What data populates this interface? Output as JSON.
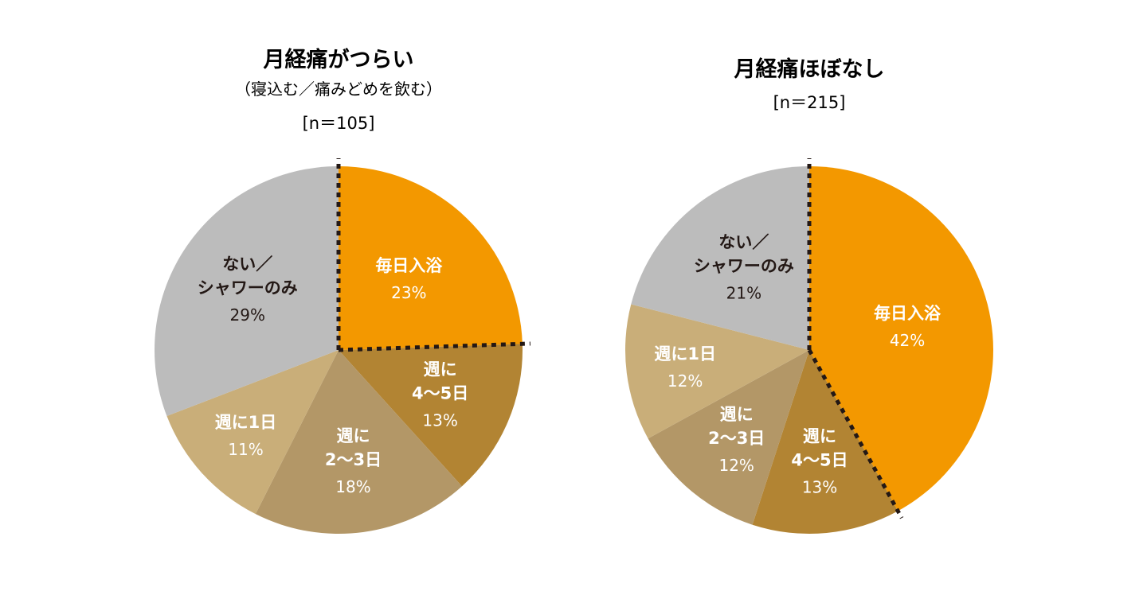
{
  "colors": {
    "bath_daily": "#f39800",
    "week_4_5": "#b28433",
    "week_2_3": "#b39767",
    "week_1": "#c9ae79",
    "none_shower": "#bcbcbc",
    "light_text": "#ffffff",
    "dark_text": "#231815",
    "divider": "#231815"
  },
  "chart_data": [
    {
      "type": "pie",
      "title": "月経痛がつらい",
      "subtitle": "（寝込む／痛みどめを飲む）",
      "n_label": "[n＝105]",
      "start": "12 o'clock",
      "direction": "clockwise",
      "slices": [
        {
          "label_lines": [
            "毎日入浴"
          ],
          "value": 23,
          "value_label": "23%",
          "color": "bath_daily",
          "text": "light"
        },
        {
          "label_lines": [
            "週に",
            "4〜5日"
          ],
          "value": 13,
          "value_label": "13%",
          "color": "week_4_5",
          "text": "light"
        },
        {
          "label_lines": [
            "週に",
            "2〜3日"
          ],
          "value": 18,
          "value_label": "18%",
          "color": "week_2_3",
          "text": "light"
        },
        {
          "label_lines": [
            "週に1日"
          ],
          "value": 11,
          "value_label": "11%",
          "color": "week_1",
          "text": "light"
        },
        {
          "label_lines": [
            "ない／",
            "シャワーのみ"
          ],
          "value": 29,
          "value_label": "29%",
          "color": "none_shower",
          "text": "dark"
        }
      ],
      "dotted_dividers": "at 12 o'clock and after 毎日入浴"
    },
    {
      "type": "pie",
      "title": "月経痛ほぼなし",
      "subtitle": "",
      "n_label": "[n＝215]",
      "start": "12 o'clock",
      "direction": "clockwise",
      "slices": [
        {
          "label_lines": [
            "毎日入浴"
          ],
          "value": 42,
          "value_label": "42%",
          "color": "bath_daily",
          "text": "light"
        },
        {
          "label_lines": [
            "週に",
            "4〜5日"
          ],
          "value": 13,
          "value_label": "13%",
          "color": "week_4_5",
          "text": "light"
        },
        {
          "label_lines": [
            "週に",
            "2〜3日"
          ],
          "value": 12,
          "value_label": "12%",
          "color": "week_2_3",
          "text": "light"
        },
        {
          "label_lines": [
            "週に1日"
          ],
          "value": 12,
          "value_label": "12%",
          "color": "week_1",
          "text": "light"
        },
        {
          "label_lines": [
            "ない／",
            "シャワーのみ"
          ],
          "value": 21,
          "value_label": "21%",
          "color": "none_shower",
          "text": "dark"
        }
      ],
      "dotted_dividers": "at 12 o'clock and after 毎日入浴"
    }
  ]
}
